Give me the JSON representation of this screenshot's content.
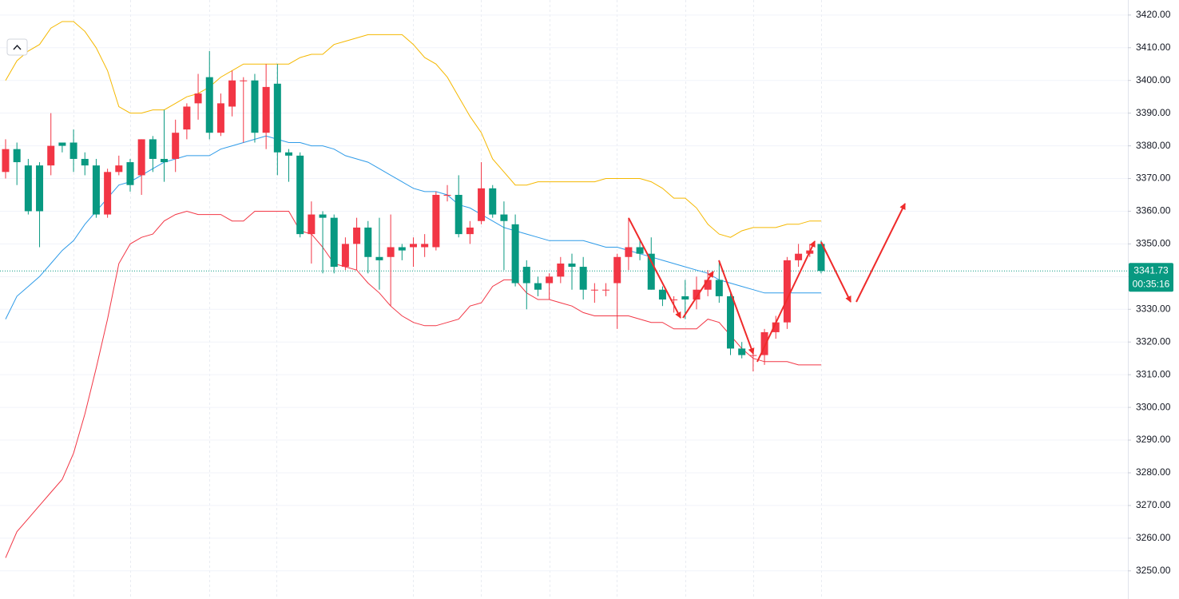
{
  "chart_data": {
    "type": "candlestick",
    "up_color": "#f23645",
    "down_color": "#089981",
    "open": [
      3372,
      3379,
      3374,
      3374,
      3374,
      3381,
      3381,
      3376,
      3374,
      3359,
      3372,
      3375,
      3371,
      3382,
      3376,
      3376,
      3385,
      3393,
      3401,
      3384,
      3392,
      3400,
      3400,
      3384,
      3399,
      3378,
      3377,
      3353,
      3359,
      3358,
      3343,
      3350,
      3355,
      3346,
      3346,
      3349,
      3349,
      3349,
      3349,
      3365,
      3365,
      3353,
      3357,
      3367,
      3359,
      3356,
      3343,
      3338,
      3338,
      3340,
      3344,
      3343,
      3336,
      3336,
      3338,
      3346,
      3349,
      3347,
      3336,
      3333,
      3334,
      3333,
      3336,
      3339,
      3334,
      3318,
      3316,
      3316,
      3323,
      3326,
      3345,
      3347,
      3350
    ],
    "high": [
      3382,
      3381,
      3376,
      3375,
      3390,
      3381,
      3385,
      3378,
      3376,
      3373,
      3377,
      3376,
      3382,
      3383,
      3391,
      3388,
      3393,
      3402,
      3409,
      3396,
      3403,
      3401,
      3402,
      3405,
      3405,
      3379,
      3378,
      3363,
      3360,
      3359,
      3352,
      3358,
      3357,
      3358,
      3359,
      3350,
      3352,
      3353,
      3366,
      3368,
      3371,
      3357,
      3375,
      3368,
      3363,
      3359,
      3345,
      3340,
      3341,
      3346,
      3347,
      3346,
      3338,
      3338,
      3347,
      3358,
      3351,
      3352,
      3337,
      3334,
      3339,
      3340,
      3342,
      3345,
      3335,
      3320,
      3317,
      3324,
      3328,
      3346,
      3350,
      3350,
      3351
    ],
    "low": [
      3370,
      3368,
      3359,
      3349,
      3371,
      3378,
      3372,
      3371,
      3358,
      3358,
      3371,
      3366,
      3365,
      3372,
      3369,
      3372,
      3382,
      3388,
      3382,
      3383,
      3389,
      3381,
      3381,
      3379,
      3371,
      3369,
      3352,
      3344,
      3341,
      3341,
      3342,
      3342,
      3341,
      3336,
      3331,
      3345,
      3343,
      3346,
      3348,
      3363,
      3352,
      3350,
      3356,
      3358,
      3342,
      3337,
      3330,
      3334,
      3333,
      3338,
      3336,
      3333,
      3332,
      3334,
      3324,
      3342,
      3345,
      3336,
      3331,
      3329,
      3327,
      3330,
      3334,
      3332,
      3316,
      3315,
      3311,
      3313,
      3321,
      3324,
      3343,
      3346,
      3341
    ],
    "close": [
      3379,
      3375,
      3360,
      3360,
      3380,
      3380,
      3376,
      3374,
      3359,
      3372,
      3374,
      3368,
      3382,
      3376,
      3375,
      3384,
      3392,
      3396,
      3384,
      3393,
      3400,
      3400,
      3384,
      3398,
      3378,
      3377,
      3353,
      3359,
      3358,
      3343,
      3350,
      3355,
      3346,
      3345,
      3349,
      3348,
      3350,
      3350,
      3365,
      3365,
      3353,
      3355,
      3367,
      3359,
      3357,
      3338,
      3338,
      3336,
      3340,
      3344,
      3343,
      3336,
      3336,
      3336,
      3346,
      3349,
      3347,
      3336,
      3333,
      3333,
      3333,
      3336,
      3339,
      3334,
      3318,
      3316,
      3316,
      3323,
      3326,
      3345,
      3347,
      3348,
      3341.73
    ],
    "bands": [
      {
        "color": "#f5b800",
        "values": [
          3400,
          3406,
          3409,
          3411,
          3416,
          3418,
          3418,
          3415,
          3410,
          3403,
          3392,
          3390,
          3390,
          3391,
          3391,
          3393,
          3395,
          3396,
          3398,
          3401,
          3403,
          3405,
          3405,
          3405,
          3405,
          3405,
          3407,
          3408,
          3408,
          3411,
          3412,
          3413,
          3414,
          3414,
          3414,
          3414,
          3411,
          3407,
          3405,
          3401,
          3395,
          3389,
          3384,
          3376,
          3372,
          3368,
          3368,
          3369,
          3369,
          3369,
          3369,
          3369,
          3369,
          3370,
          3370,
          3370,
          3370,
          3369,
          3367,
          3364,
          3364,
          3361,
          3356,
          3353,
          3352,
          3354,
          3355,
          3355,
          3355,
          3356,
          3356,
          3357,
          3357
        ]
      },
      {
        "color": "#2e9be8",
        "values": [
          3327,
          3334,
          3337,
          3340,
          3344,
          3348,
          3351,
          3356,
          3360,
          3364,
          3368,
          3369,
          3371,
          3373,
          3375,
          3376,
          3377,
          3377,
          3377,
          3379,
          3380,
          3381,
          3382,
          3383,
          3382,
          3381,
          3381,
          3380,
          3380,
          3379,
          3377,
          3376,
          3375,
          3373,
          3371,
          3369,
          3367,
          3366,
          3366,
          3365,
          3362,
          3361,
          3359,
          3357,
          3355,
          3354,
          3353,
          3352,
          3351,
          3351,
          3351,
          3351,
          3350,
          3349,
          3349,
          3348,
          3347,
          3346,
          3345,
          3344,
          3343,
          3342,
          3341,
          3339,
          3338,
          3337,
          3336,
          3335,
          3335,
          3335,
          3335,
          3335,
          3335
        ]
      },
      {
        "color": "#f23645",
        "values": [
          3254,
          3262,
          3266,
          3270,
          3274,
          3278,
          3286,
          3298,
          3312,
          3327,
          3344,
          3350,
          3352,
          3353,
          3357,
          3359,
          3360,
          3359,
          3359,
          3359,
          3357,
          3357,
          3360,
          3360,
          3360,
          3360,
          3354,
          3353,
          3349,
          3344,
          3343,
          3342,
          3338,
          3335,
          3331,
          3328,
          3326,
          3325,
          3325,
          3326,
          3327,
          3331,
          3332,
          3337,
          3339,
          3339,
          3335,
          3333,
          3333,
          3332,
          3331,
          3329,
          3328,
          3328,
          3328,
          3328,
          3327,
          3326,
          3326,
          3324,
          3324,
          3324,
          3327,
          3326,
          3322,
          3318,
          3315,
          3314,
          3314,
          3314,
          3313,
          3313,
          3313
        ]
      }
    ],
    "ylim": [
      3241.4,
      3424.6
    ],
    "yticks": [
      {
        "value": 3250,
        "label": "3250.00"
      },
      {
        "value": 3260,
        "label": "3260.00"
      },
      {
        "value": 3270,
        "label": "3270.00"
      },
      {
        "value": 3280,
        "label": "3280.00"
      },
      {
        "value": 3290,
        "label": "3290.00"
      },
      {
        "value": 3300,
        "label": "3300.00"
      },
      {
        "value": 3310,
        "label": "3310.00"
      },
      {
        "value": 3320,
        "label": "3320.00"
      },
      {
        "value": 3330,
        "label": "3330.00"
      },
      {
        "value": 3340,
        "label": "3340.00"
      },
      {
        "value": 3350,
        "label": "3350.00"
      },
      {
        "value": 3360,
        "label": "3360.00"
      },
      {
        "value": 3370,
        "label": "3370.00"
      },
      {
        "value": 3380,
        "label": "3380.00"
      },
      {
        "value": 3390,
        "label": "3390.00"
      },
      {
        "value": 3400,
        "label": "3400.00"
      },
      {
        "value": 3410,
        "label": "3410.00"
      },
      {
        "value": 3420,
        "label": "3420.00"
      }
    ],
    "grid": true,
    "last_price": 3341.73,
    "countdown": "00:35:16"
  }
}
